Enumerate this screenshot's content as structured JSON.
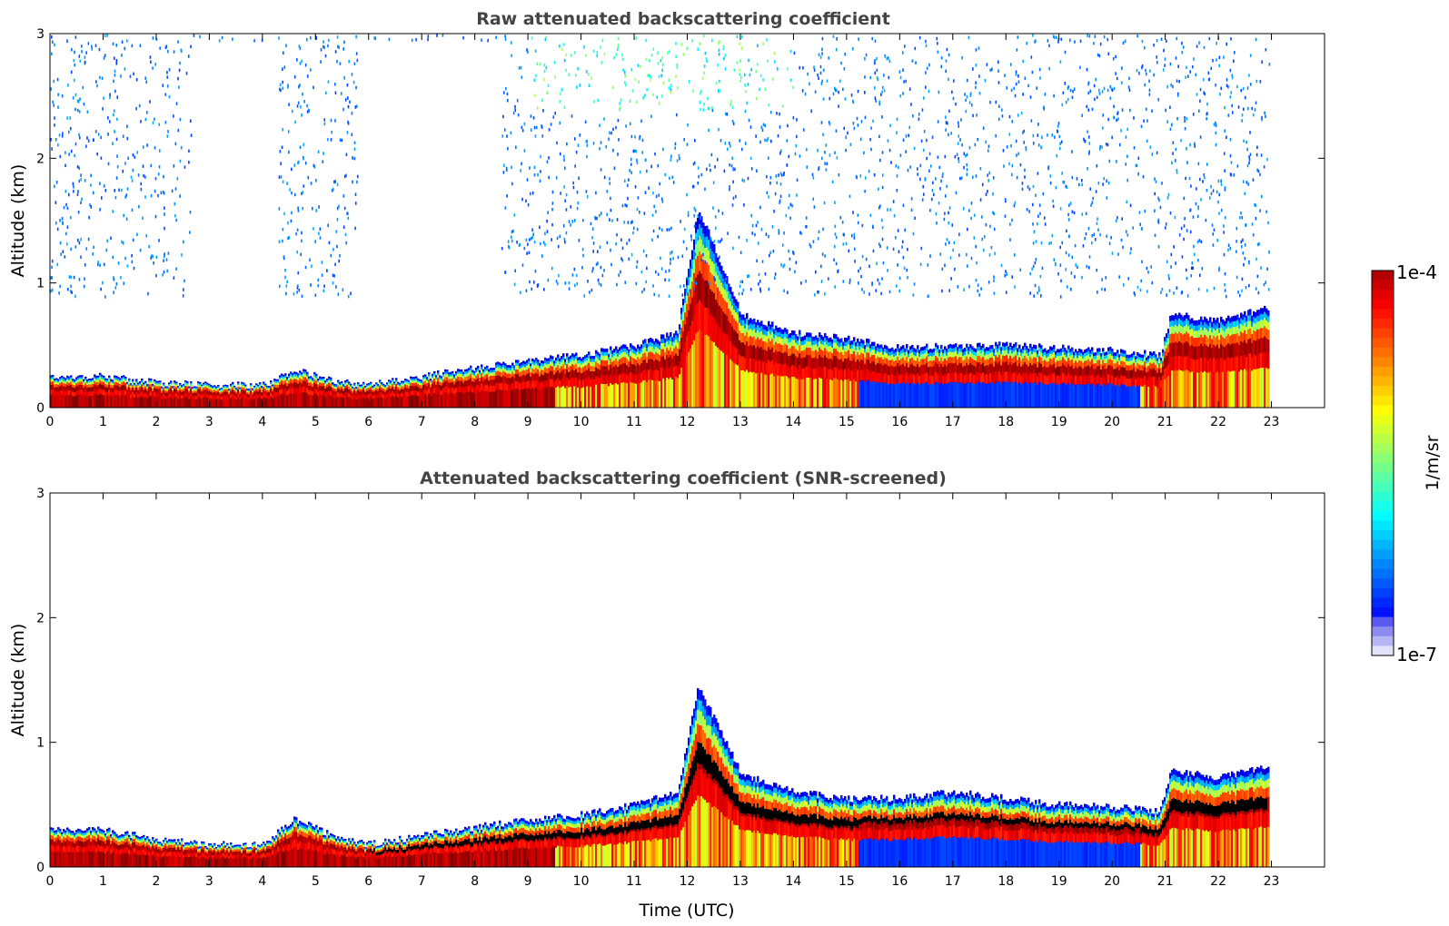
{
  "chart_data": [
    {
      "type": "heatmap",
      "title": "Raw attenuated backscattering coefficient",
      "xlabel": "",
      "ylabel": "Altitude (km)",
      "xlim": [
        0,
        24
      ],
      "ylim": [
        0,
        3
      ],
      "xticks": [
        "0",
        "1",
        "2",
        "3",
        "4",
        "5",
        "6",
        "7",
        "8",
        "9",
        "10",
        "11",
        "12",
        "13",
        "14",
        "15",
        "16",
        "17",
        "18",
        "19",
        "20",
        "21",
        "22",
        "23"
      ],
      "yticks": [
        "0",
        "1",
        "2",
        "3"
      ],
      "z_scale": "log",
      "noise_above_layer": true,
      "layer_top_km": [
        0.25,
        0.25,
        0.2,
        0.18,
        0.18,
        0.3,
        0.2,
        0.18,
        0.25,
        0.32,
        0.38,
        0.42,
        0.5,
        0.6,
        1.6,
        0.75,
        0.6,
        0.55,
        0.48,
        0.5,
        0.5,
        0.48,
        0.46,
        0.42,
        0.75,
        0.7,
        0.8
      ],
      "layer_x_utc": [
        0,
        1,
        2,
        3,
        4,
        4.6,
        5.5,
        6,
        7,
        8,
        9,
        10,
        11,
        11.8,
        12.2,
        13,
        14,
        15,
        16,
        17,
        18,
        19,
        20,
        20.9,
        21.1,
        22,
        22.9
      ]
    },
    {
      "type": "heatmap",
      "title": "Attenuated backscattering coefficient (SNR-screened)",
      "xlabel": "Time (UTC)",
      "ylabel": "Altitude (km)",
      "xlim": [
        0,
        24
      ],
      "ylim": [
        0,
        3
      ],
      "xticks": [
        "0",
        "1",
        "2",
        "3",
        "4",
        "5",
        "6",
        "7",
        "8",
        "9",
        "10",
        "11",
        "12",
        "13",
        "14",
        "15",
        "16",
        "17",
        "18",
        "19",
        "20",
        "21",
        "22",
        "23"
      ],
      "yticks": [
        "0",
        "1",
        "2",
        "3"
      ],
      "z_scale": "log",
      "noise_above_layer": false,
      "layer_top_km": [
        0.3,
        0.3,
        0.22,
        0.18,
        0.18,
        0.38,
        0.22,
        0.18,
        0.25,
        0.32,
        0.38,
        0.42,
        0.5,
        0.6,
        1.45,
        0.75,
        0.6,
        0.55,
        0.55,
        0.6,
        0.55,
        0.5,
        0.48,
        0.45,
        0.78,
        0.72,
        0.8
      ],
      "layer_x_utc": [
        0,
        1,
        2,
        3,
        4,
        4.6,
        5.5,
        6,
        7,
        8,
        9,
        10,
        11,
        11.8,
        12.2,
        13,
        14,
        15,
        16,
        17,
        18,
        19,
        20,
        20.9,
        21.1,
        22,
        22.9
      ]
    }
  ],
  "colorbar": {
    "max_label": "1e-4",
    "min_label": "1e-7",
    "unit_label": "1/m/sr",
    "colormap": "jet"
  }
}
